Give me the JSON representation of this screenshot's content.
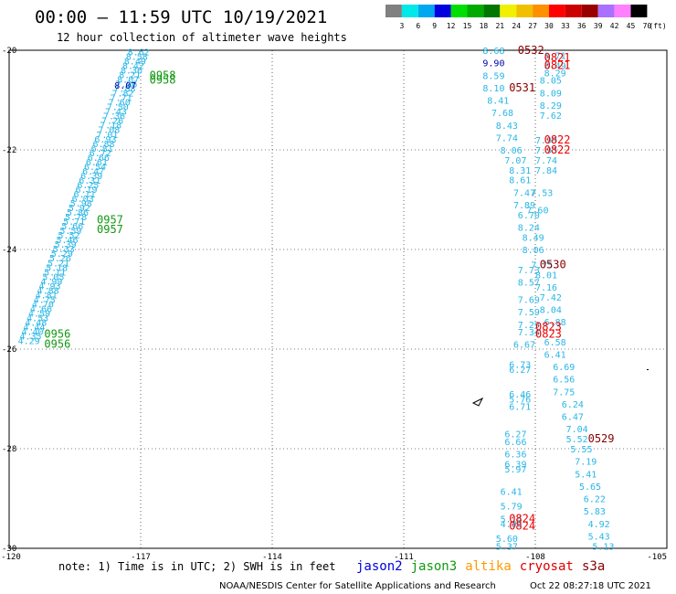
{
  "title": "00:00 — 11:59 UTC 10/19/2021",
  "subtitle": "12 hour collection of altimeter wave heights",
  "note": "note: 1) Time is in UTC; 2) SWH is in feet",
  "credit": "NOAA/NESDIS Center for Satellite Applications and Research",
  "timestamp": "Oct 22 08:27:18 UTC 2021",
  "colors": {
    "light_blue": "#29b6e6",
    "dark_blue": "#0000aa",
    "green": "#119911",
    "red": "#ee0000",
    "dark_red": "#880000"
  },
  "satellites": [
    {
      "name": "jason2",
      "color": "#0000dd"
    },
    {
      "name": "jason3",
      "color": "#119911"
    },
    {
      "name": "altika",
      "color": "#ff9900"
    },
    {
      "name": "cryosat",
      "color": "#dd0000"
    },
    {
      "name": "s3a",
      "color": "#880000"
    }
  ],
  "legend": {
    "labels": [
      "3",
      "6",
      "9",
      "12",
      "15",
      "18",
      "21",
      "24",
      "27",
      "30",
      "33",
      "36",
      "39",
      "42",
      "45",
      "70",
      "(ft)"
    ],
    "colors": [
      "#808080",
      "#00e8e8",
      "#00a8f0",
      "#0000e0",
      "#00dd00",
      "#00aa00",
      "#007700",
      "#f0f000",
      "#f0c000",
      "#ff9000",
      "#ff0000",
      "#cc0000",
      "#990000",
      "#aa70ff",
      "#ff80ff",
      "#000000"
    ]
  },
  "chart_data": {
    "type": "scatter",
    "xlim": [
      -120,
      -105
    ],
    "ylim": [
      -30,
      -20
    ],
    "x_ticks": [
      "-120",
      "-117",
      "-114",
      "-111",
      "-108",
      "-105"
    ],
    "y_ticks": [
      "-20",
      "-22",
      "-24",
      "-26",
      "-28",
      "-30"
    ],
    "grid": true,
    "track1_values": [
      "8.62",
      "8.58",
      "8.49",
      "8.42",
      "8.36",
      "8.21",
      "8.07",
      "7.96",
      "7.88",
      "7.82",
      "7.71",
      "7.60",
      "7.50",
      "7.43",
      "7.36",
      "7.26",
      "7.18",
      "7.08",
      "7.01",
      "6.93",
      "6.88",
      "6.81",
      "6.72",
      "6.66",
      "6.61",
      "6.54",
      "6.47",
      "6.39",
      "6.31",
      "6.25",
      "6.19",
      "6.11",
      "6.03",
      "5.98",
      "5.92",
      "5.86",
      "5.78",
      "5.71",
      "5.66",
      "5.59",
      "5.52",
      "5.46",
      "5.39",
      "5.33",
      "5.29",
      "5.26",
      "5.21",
      "5.18",
      "5.11",
      "5.05",
      "4.99",
      "4.93",
      "4.88",
      "4.81",
      "4.75",
      "4.70",
      "4.66",
      "4.59",
      "4.53",
      "4.48",
      "4.44",
      "4.40",
      "4.35",
      "4.29"
    ],
    "track1_lon": [
      -117.3,
      -119.8
    ],
    "track1_lat": [
      -20.1,
      -25.9
    ],
    "track1_times": [
      {
        "text": "0958",
        "lon": -116.8,
        "lat": -20.5,
        "color": "green"
      },
      {
        "text": "0958",
        "lon": -116.8,
        "lat": -20.6,
        "color": "green"
      },
      {
        "text": "0957",
        "lon": -118.0,
        "lat": -23.4,
        "color": "green"
      },
      {
        "text": "0957",
        "lon": -118.0,
        "lat": -23.6,
        "color": "green"
      },
      {
        "text": "0956",
        "lon": -119.2,
        "lat": -25.7,
        "color": "green"
      },
      {
        "text": "0956",
        "lon": -119.2,
        "lat": -25.9,
        "color": "green"
      }
    ],
    "points": [
      {
        "t": "8.68",
        "lon": -109.2,
        "lat": -20.0,
        "c": "light_blue"
      },
      {
        "t": "9.90",
        "lon": -109.2,
        "lat": -20.25,
        "c": "dark_blue"
      },
      {
        "t": "8.59",
        "lon": -109.2,
        "lat": -20.5,
        "c": "light_blue"
      },
      {
        "t": "8.10",
        "lon": -109.2,
        "lat": -20.75,
        "c": "light_blue"
      },
      {
        "t": "8.41",
        "lon": -109.1,
        "lat": -21.0,
        "c": "light_blue"
      },
      {
        "t": "7.68",
        "lon": -109.0,
        "lat": -21.25,
        "c": "light_blue"
      },
      {
        "t": "8.43",
        "lon": -108.9,
        "lat": -21.5,
        "c": "light_blue"
      },
      {
        "t": "7.74",
        "lon": -108.9,
        "lat": -21.75,
        "c": "light_blue"
      },
      {
        "t": "8.06",
        "lon": -108.8,
        "lat": -22.0,
        "c": "light_blue"
      },
      {
        "t": "7.07",
        "lon": -108.7,
        "lat": -22.2,
        "c": "light_blue"
      },
      {
        "t": "8.31",
        "lon": -108.6,
        "lat": -22.4,
        "c": "light_blue"
      },
      {
        "t": "8.61",
        "lon": -108.6,
        "lat": -22.6,
        "c": "light_blue"
      },
      {
        "t": "7.47",
        "lon": -108.5,
        "lat": -22.85,
        "c": "light_blue"
      },
      {
        "t": "7.89",
        "lon": -108.5,
        "lat": -23.1,
        "c": "light_blue"
      },
      {
        "t": "6.70",
        "lon": -108.4,
        "lat": -23.3,
        "c": "light_blue"
      },
      {
        "t": "8.24",
        "lon": -108.4,
        "lat": -23.55,
        "c": "light_blue"
      },
      {
        "t": "8.49",
        "lon": -108.3,
        "lat": -23.75,
        "c": "light_blue"
      },
      {
        "t": "8.06",
        "lon": -108.3,
        "lat": -24.0,
        "c": "light_blue"
      },
      {
        "t": "7.73",
        "lon": -108.4,
        "lat": -24.4,
        "c": "light_blue"
      },
      {
        "t": "8.57",
        "lon": -108.4,
        "lat": -24.65,
        "c": "light_blue"
      },
      {
        "t": "7.69",
        "lon": -108.4,
        "lat": -25.0,
        "c": "light_blue"
      },
      {
        "t": "7.59",
        "lon": -108.4,
        "lat": -25.25,
        "c": "light_blue"
      },
      {
        "t": "7.29",
        "lon": -108.4,
        "lat": -25.5,
        "c": "light_blue"
      },
      {
        "t": "7.34",
        "lon": -108.4,
        "lat": -25.65,
        "c": "light_blue"
      },
      {
        "t": "6.67",
        "lon": -108.5,
        "lat": -25.9,
        "c": "light_blue"
      },
      {
        "t": "6.73",
        "lon": -108.6,
        "lat": -26.3,
        "c": "light_blue"
      },
      {
        "t": "6.27",
        "lon": -108.6,
        "lat": -26.4,
        "c": "light_blue"
      },
      {
        "t": "6.46",
        "lon": -108.6,
        "lat": -26.9,
        "c": "light_blue"
      },
      {
        "t": "5.76",
        "lon": -108.6,
        "lat": -27.0,
        "c": "light_blue"
      },
      {
        "t": "6.71",
        "lon": -108.6,
        "lat": -27.15,
        "c": "light_blue"
      },
      {
        "t": "6.27",
        "lon": -108.7,
        "lat": -27.7,
        "c": "light_blue"
      },
      {
        "t": "6.66",
        "lon": -108.7,
        "lat": -27.85,
        "c": "light_blue"
      },
      {
        "t": "6.36",
        "lon": -108.7,
        "lat": -28.1,
        "c": "light_blue"
      },
      {
        "t": "6.39",
        "lon": -108.7,
        "lat": -28.3,
        "c": "light_blue"
      },
      {
        "t": "5.97",
        "lon": -108.7,
        "lat": -28.4,
        "c": "light_blue"
      },
      {
        "t": "6.41",
        "lon": -108.8,
        "lat": -28.85,
        "c": "light_blue"
      },
      {
        "t": "5.79",
        "lon": -108.8,
        "lat": -29.15,
        "c": "light_blue"
      },
      {
        "t": "5.14",
        "lon": -108.8,
        "lat": -29.4,
        "c": "light_blue"
      },
      {
        "t": "4.96",
        "lon": -108.8,
        "lat": -29.5,
        "c": "light_blue"
      },
      {
        "t": "5.60",
        "lon": -108.9,
        "lat": -29.8,
        "c": "light_blue"
      },
      {
        "t": "5.37",
        "lon": -108.9,
        "lat": -29.95,
        "c": "light_blue"
      },
      {
        "t": "8.71",
        "lon": -107.8,
        "lat": -20.1,
        "c": "light_blue"
      },
      {
        "t": "8.49",
        "lon": -107.8,
        "lat": -20.3,
        "c": "light_blue"
      },
      {
        "t": "8.29",
        "lon": -107.8,
        "lat": -20.45,
        "c": "light_blue"
      },
      {
        "t": "8.05",
        "lon": -107.9,
        "lat": -20.6,
        "c": "light_blue"
      },
      {
        "t": "8.09",
        "lon": -107.9,
        "lat": -20.85,
        "c": "light_blue"
      },
      {
        "t": "8.29",
        "lon": -107.9,
        "lat": -21.1,
        "c": "light_blue"
      },
      {
        "t": "7.62",
        "lon": -107.9,
        "lat": -21.3,
        "c": "light_blue"
      },
      {
        "t": "7.99",
        "lon": -108.0,
        "lat": -21.8,
        "c": "light_blue"
      },
      {
        "t": "7.93",
        "lon": -108.0,
        "lat": -22.0,
        "c": "light_blue"
      },
      {
        "t": "7.74",
        "lon": -108.0,
        "lat": -22.2,
        "c": "light_blue"
      },
      {
        "t": "7.84",
        "lon": -108.0,
        "lat": -22.4,
        "c": "light_blue"
      },
      {
        "t": "7.53",
        "lon": -108.1,
        "lat": -22.85,
        "c": "light_blue"
      },
      {
        "t": "7.60",
        "lon": -108.2,
        "lat": -23.2,
        "c": "light_blue"
      },
      {
        "t": "7.75",
        "lon": -108.1,
        "lat": -24.3,
        "c": "light_blue"
      },
      {
        "t": "8.01",
        "lon": -108.0,
        "lat": -24.5,
        "c": "light_blue"
      },
      {
        "t": "7.16",
        "lon": -108.0,
        "lat": -24.75,
        "c": "light_blue"
      },
      {
        "t": "7.42",
        "lon": -107.9,
        "lat": -24.95,
        "c": "light_blue"
      },
      {
        "t": "8.04",
        "lon": -107.9,
        "lat": -25.2,
        "c": "light_blue"
      },
      {
        "t": "6.88",
        "lon": -107.8,
        "lat": -25.45,
        "c": "light_blue"
      },
      {
        "t": "6.58",
        "lon": -107.8,
        "lat": -25.85,
        "c": "light_blue"
      },
      {
        "t": "6.41",
        "lon": -107.8,
        "lat": -26.1,
        "c": "light_blue"
      },
      {
        "t": "6.69",
        "lon": -107.6,
        "lat": -26.35,
        "c": "light_blue"
      },
      {
        "t": "6.56",
        "lon": -107.6,
        "lat": -26.6,
        "c": "light_blue"
      },
      {
        "t": "7.75",
        "lon": -107.6,
        "lat": -26.85,
        "c": "light_blue"
      },
      {
        "t": "6.24",
        "lon": -107.4,
        "lat": -27.1,
        "c": "light_blue"
      },
      {
        "t": "6.47",
        "lon": -107.4,
        "lat": -27.35,
        "c": "light_blue"
      },
      {
        "t": "7.04",
        "lon": -107.3,
        "lat": -27.6,
        "c": "light_blue"
      },
      {
        "t": "5.52",
        "lon": -107.3,
        "lat": -27.8,
        "c": "light_blue"
      },
      {
        "t": "5.55",
        "lon": -107.2,
        "lat": -28.0,
        "c": "light_blue"
      },
      {
        "t": "7.19",
        "lon": -107.1,
        "lat": -28.25,
        "c": "light_blue"
      },
      {
        "t": "5.41",
        "lon": -107.1,
        "lat": -28.5,
        "c": "light_blue"
      },
      {
        "t": "5.65",
        "lon": -107.0,
        "lat": -28.75,
        "c": "light_blue"
      },
      {
        "t": "6.22",
        "lon": -106.9,
        "lat": -29.0,
        "c": "light_blue"
      },
      {
        "t": "5.83",
        "lon": -106.9,
        "lat": -29.25,
        "c": "light_blue"
      },
      {
        "t": "4.92",
        "lon": -106.8,
        "lat": -29.5,
        "c": "light_blue"
      },
      {
        "t": "5.43",
        "lon": -106.8,
        "lat": -29.75,
        "c": "light_blue"
      },
      {
        "t": "5.13",
        "lon": -106.7,
        "lat": -29.95,
        "c": "light_blue"
      },
      {
        "t": "8.07",
        "lon": -117.6,
        "lat": -20.7,
        "c": "dark_blue"
      }
    ],
    "time_labels": [
      {
        "t": "0532",
        "lon": -108.4,
        "lat": -20.0,
        "c": "dark_red"
      },
      {
        "t": "0821",
        "lon": -107.8,
        "lat": -20.15,
        "c": "red"
      },
      {
        "t": "0821",
        "lon": -107.8,
        "lat": -20.3,
        "c": "red"
      },
      {
        "t": "0531",
        "lon": -108.6,
        "lat": -20.75,
        "c": "dark_red"
      },
      {
        "t": "0822",
        "lon": -107.8,
        "lat": -21.8,
        "c": "red"
      },
      {
        "t": "0822",
        "lon": -107.8,
        "lat": -22.0,
        "c": "red"
      },
      {
        "t": "0530",
        "lon": -107.9,
        "lat": -24.3,
        "c": "dark_red"
      },
      {
        "t": "0823",
        "lon": -108.0,
        "lat": -25.55,
        "c": "red"
      },
      {
        "t": "0823",
        "lon": -108.0,
        "lat": -25.7,
        "c": "red"
      },
      {
        "t": "0529",
        "lon": -106.8,
        "lat": -27.8,
        "c": "dark_red"
      },
      {
        "t": "0824",
        "lon": -108.6,
        "lat": -29.4,
        "c": "red"
      },
      {
        "t": "0824",
        "lon": -108.6,
        "lat": -29.55,
        "c": "red"
      }
    ]
  }
}
